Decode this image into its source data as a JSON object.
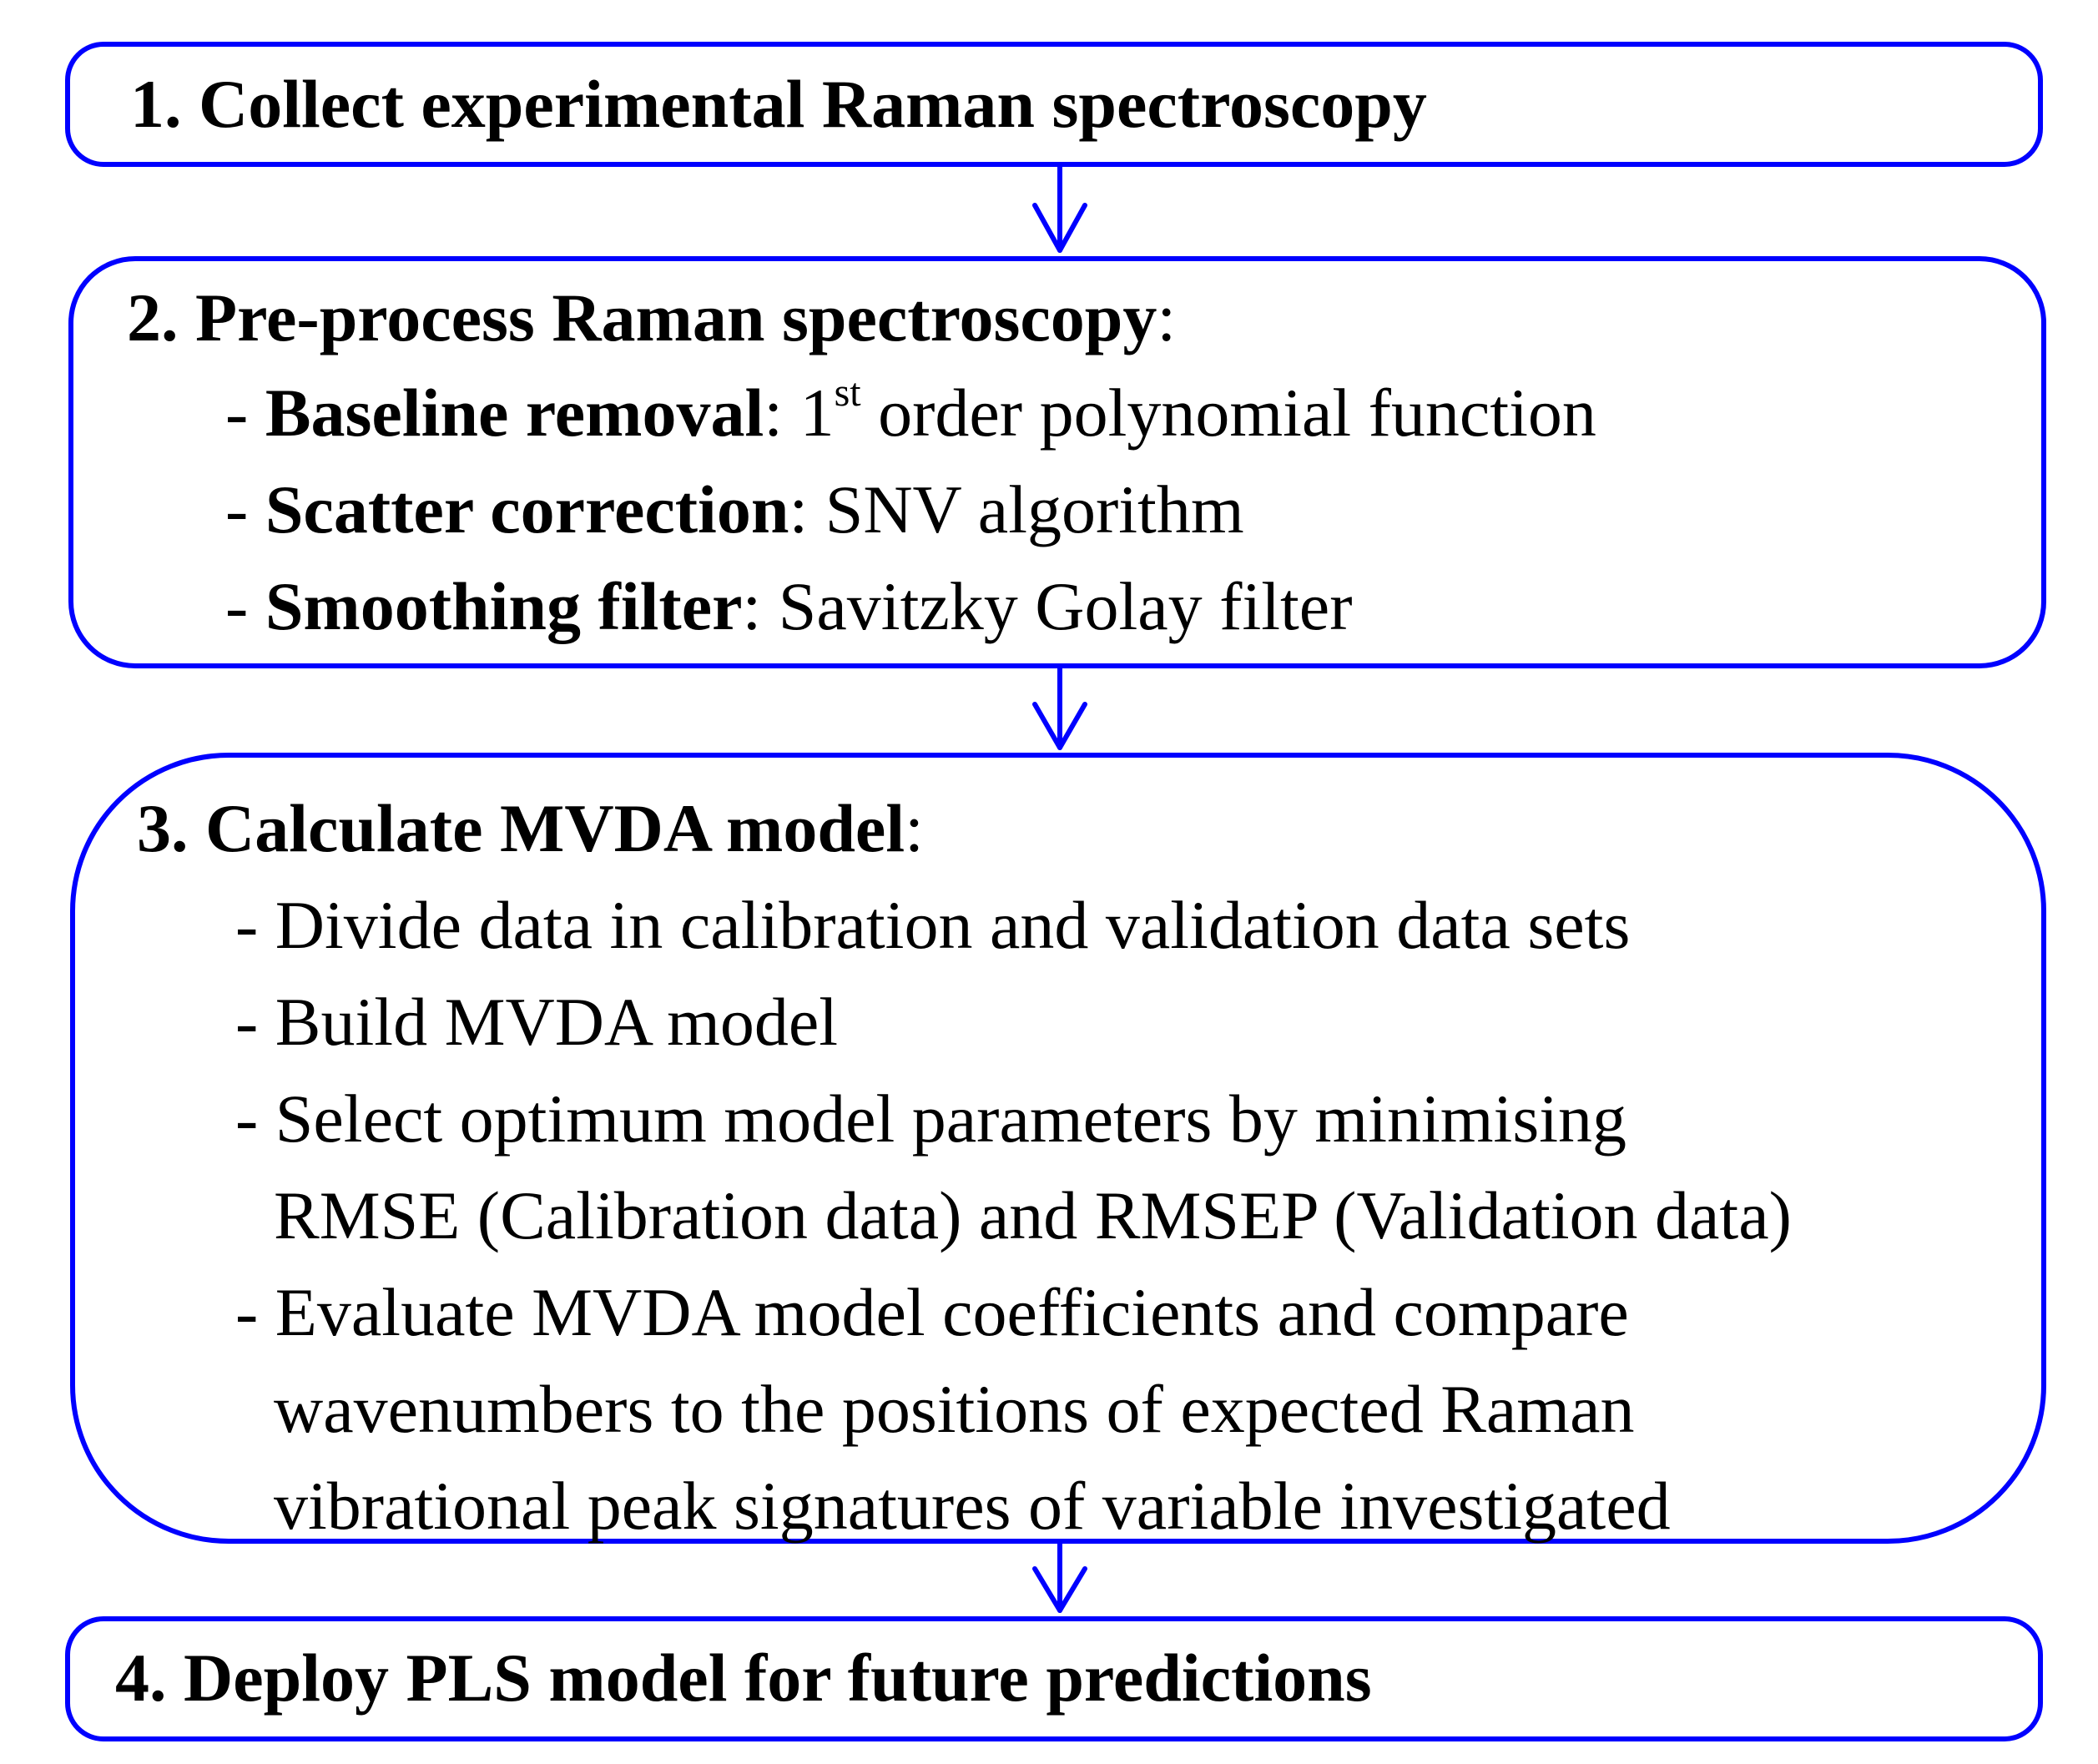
{
  "steps": {
    "s1": {
      "title": "1. Collect experimental Raman spectroscopy"
    },
    "s2": {
      "title": "2. Pre-process Raman spectroscopy",
      "colon": ":",
      "items": [
        {
          "dash": "- ",
          "label": "Baseline removal",
          "sep": ": ",
          "value_pre": "1",
          "sup": "st",
          "value_post": " order polynomial function"
        },
        {
          "dash": "- ",
          "label": "Scatter correction",
          "sep": ": ",
          "value": "SNV algorithm"
        },
        {
          "dash": "- ",
          "label": "Smoothing filter",
          "sep": ": ",
          "value": "Savitzky Golay filter"
        }
      ]
    },
    "s3": {
      "title": "3. Calculate MVDA model",
      "colon": ":",
      "lines": [
        "- Divide data in calibration and validation data sets",
        "- Build MVDA model",
        "- Select optimum model parameters by minimising",
        "RMSE (Calibration data) and RMSEP (Validation data)",
        "- Evaluate MVDA model coefficients and compare",
        "wavenumbers to the positions of expected Raman",
        "vibrational peak signatures of variable investigated"
      ]
    },
    "s4": {
      "title": "4. Deploy PLS model for future predictions"
    }
  },
  "colors": {
    "box_border": "#0000ff",
    "arrow": "#0000ff",
    "text": "#000000"
  }
}
